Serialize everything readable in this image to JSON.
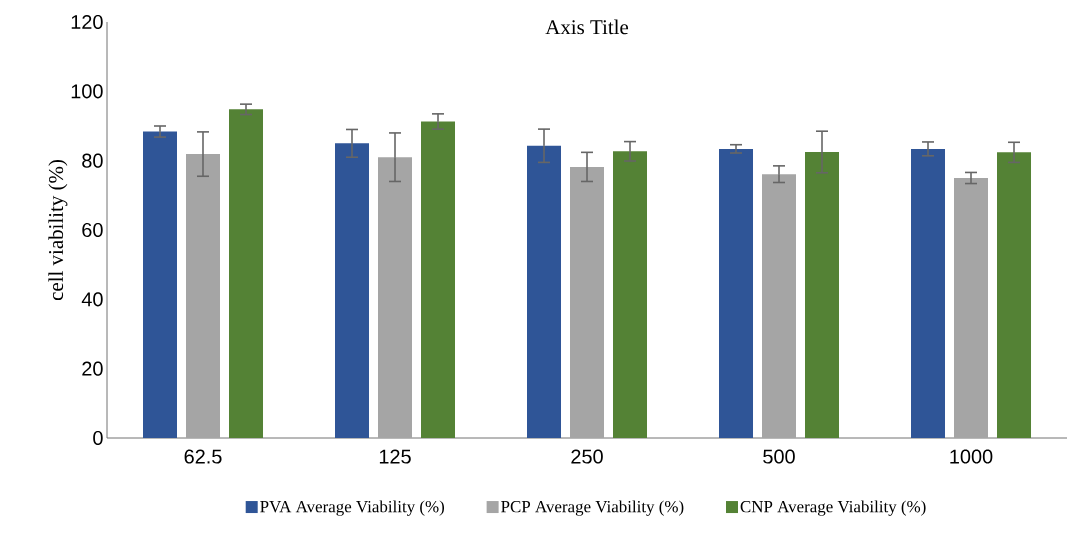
{
  "chart_data": {
    "type": "bar",
    "title": "Axis Title",
    "ylabel": "cell viability (%)",
    "categories": [
      "62.5",
      "125",
      "250",
      "500",
      "1000"
    ],
    "series": [
      {
        "name": "PVA Average Viability (%)",
        "color": "#2f5597",
        "values": [
          88.4,
          85.0,
          84.3,
          83.4,
          83.4
        ],
        "errors": [
          1.6,
          4.0,
          4.8,
          1.2,
          2.0
        ]
      },
      {
        "name": "PCP Average Viability (%)",
        "color": "#a5a5a5",
        "values": [
          81.9,
          81.0,
          78.2,
          76.1,
          75.0
        ],
        "errors": [
          6.4,
          7.0,
          4.2,
          2.4,
          1.6
        ]
      },
      {
        "name": "CNP Average Viability (%)",
        "color": "#548235",
        "values": [
          94.8,
          91.3,
          82.7,
          82.5,
          82.4
        ],
        "errors": [
          1.5,
          2.2,
          2.8,
          6.0,
          2.9
        ]
      }
    ],
    "ylim": [
      0,
      120
    ],
    "yticks": [
      0,
      20,
      40,
      60,
      80,
      100,
      120
    ],
    "legend": "bottom"
  }
}
